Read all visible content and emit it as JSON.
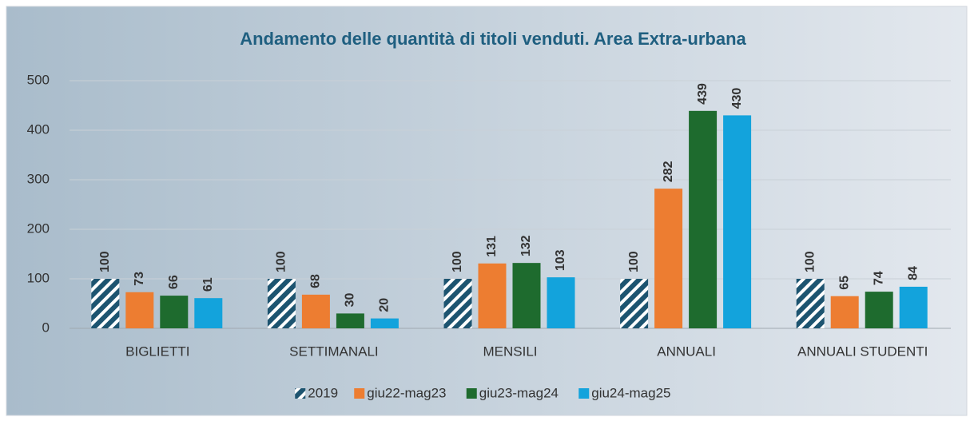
{
  "chart_data": {
    "type": "bar",
    "title": "Andamento delle quantità di titoli venduti. Area Extra-urbana",
    "categories": [
      "BIGLIETTI",
      "SETTIMANALI",
      "MENSILI",
      "ANNUALI",
      "ANNUALI STUDENTI"
    ],
    "series": [
      {
        "name": "2019",
        "color": "#1d5470",
        "pattern": "hatch",
        "values": [
          100,
          100,
          100,
          100,
          100
        ]
      },
      {
        "name": "giu22-mag23",
        "color": "#ed7d31",
        "values": [
          73,
          68,
          131,
          282,
          65
        ]
      },
      {
        "name": "giu23-mag24",
        "color": "#1e6b2e",
        "values": [
          66,
          30,
          132,
          439,
          74
        ]
      },
      {
        "name": "giu24-mag25",
        "color": "#13a3dc",
        "values": [
          61,
          20,
          103,
          430,
          84
        ]
      }
    ],
    "ylim": [
      0,
      500
    ],
    "yticks": [
      0,
      100,
      200,
      300,
      400,
      500
    ],
    "grid": true,
    "legend": "bottom"
  }
}
